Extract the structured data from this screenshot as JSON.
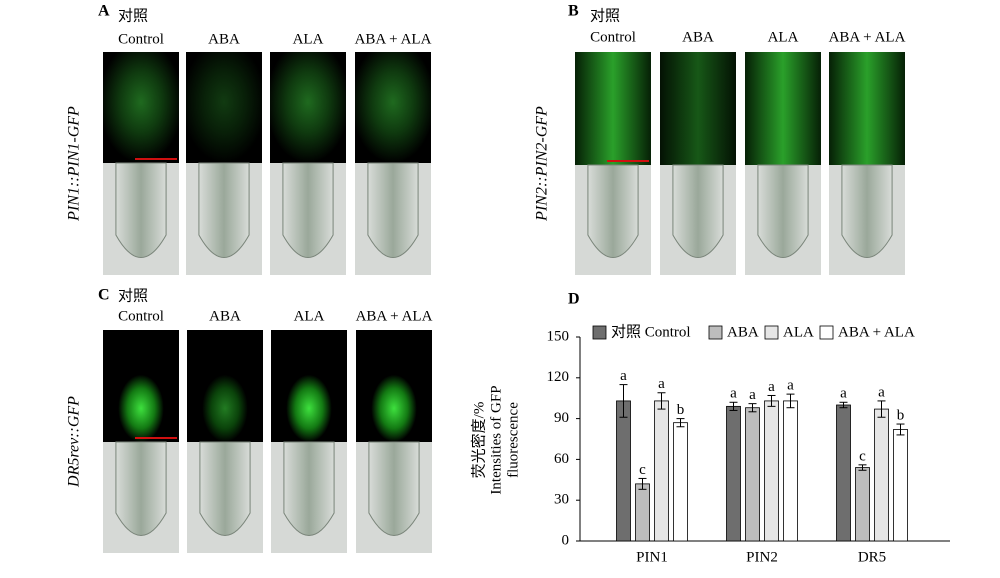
{
  "panels": [
    {
      "letter": "A",
      "control_zh": "对照",
      "columns": [
        "Control",
        "ABA",
        "ALA",
        "ABA + ALA"
      ],
      "label": "PIN1::PIN1-GFP"
    },
    {
      "letter": "B",
      "control_zh": "对照",
      "columns": [
        "Control",
        "ABA",
        "ALA",
        "ABA + ALA"
      ],
      "label": "PIN2::PIN2-GFP"
    },
    {
      "letter": "C",
      "control_zh": "对照",
      "columns": [
        "Control",
        "ABA",
        "ALA",
        "ABA + ALA"
      ],
      "label": "DR5rev::GFP"
    }
  ],
  "chart_data": {
    "type": "bar",
    "letter": "D",
    "ylabel": [
      "荧光密度/%",
      "Intensities of GFP",
      "fluorescence"
    ],
    "categories": [
      "PIN1",
      "PIN2",
      "DR5"
    ],
    "series": [
      {
        "name": "对照 Control",
        "color": "#6e6e6e",
        "values": [
          103,
          99,
          100
        ],
        "errors": [
          12,
          3,
          2
        ],
        "letters": [
          "a",
          "a",
          "a"
        ]
      },
      {
        "name": "ABA",
        "color": "#bdbdbd",
        "values": [
          42,
          98,
          54
        ],
        "errors": [
          4,
          3,
          2
        ],
        "letters": [
          "c",
          "a",
          "c"
        ]
      },
      {
        "name": "ALA",
        "color": "#e6e6e6",
        "values": [
          103,
          103,
          97
        ],
        "errors": [
          6,
          4,
          6
        ],
        "letters": [
          "a",
          "a",
          "a"
        ]
      },
      {
        "name": "ABA + ALA",
        "color": "#ffffff",
        "values": [
          87,
          103,
          82
        ],
        "errors": [
          3,
          5,
          4
        ],
        "letters": [
          "b",
          "a",
          "b"
        ]
      }
    ],
    "ylim": [
      0,
      150
    ],
    "yticks": [
      0,
      30,
      60,
      90,
      120,
      150
    ],
    "grid": false
  }
}
